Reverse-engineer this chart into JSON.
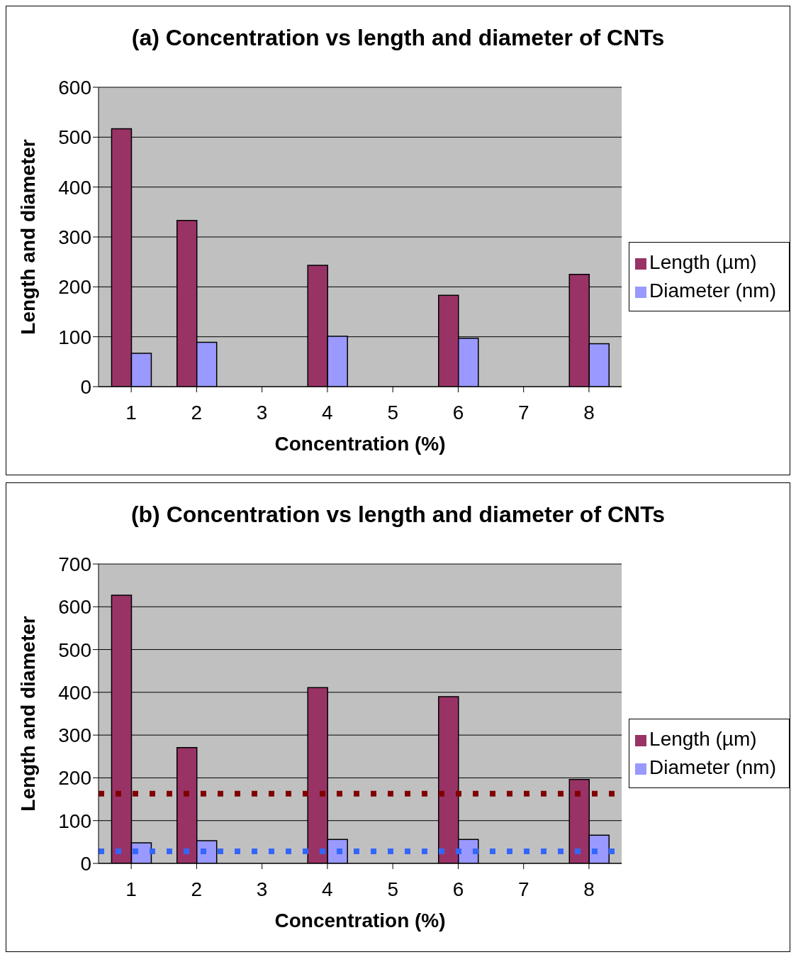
{
  "chart_data": [
    {
      "type": "bar",
      "title": "(a) Concentration vs length and diameter of CNTs",
      "xlabel": "Concentration (%)",
      "ylabel": "Length and diameter",
      "categories": [
        "1",
        "2",
        "3",
        "4",
        "5",
        "6",
        "7",
        "8"
      ],
      "series": [
        {
          "name": "Length (µm)",
          "color": "#993366",
          "values": [
            517,
            333,
            null,
            243,
            null,
            183,
            null,
            225
          ]
        },
        {
          "name": "Diameter (nm)",
          "color": "#9999ff",
          "values": [
            67,
            89,
            null,
            101,
            null,
            97,
            null,
            86
          ]
        }
      ],
      "ylim": [
        0,
        600
      ],
      "yticks": [
        0,
        100,
        200,
        300,
        400,
        500,
        600
      ],
      "grid": "y",
      "legend": "right"
    },
    {
      "type": "bar",
      "title": "(b) Concentration vs length and diameter of CNTs",
      "xlabel": "Concentration (%)",
      "ylabel": "Length and diameter",
      "categories": [
        "1",
        "2",
        "3",
        "4",
        "5",
        "6",
        "7",
        "8"
      ],
      "series": [
        {
          "name": "Length (µm)",
          "color": "#993366",
          "values": [
            627,
            271,
            null,
            411,
            null,
            390,
            null,
            196
          ]
        },
        {
          "name": "Diameter (nm)",
          "color": "#9999ff",
          "values": [
            48,
            53,
            null,
            56,
            null,
            56,
            null,
            66
          ]
        }
      ],
      "ylim": [
        0,
        700
      ],
      "yticks": [
        0,
        100,
        200,
        300,
        400,
        500,
        600,
        700
      ],
      "grid": "y",
      "legend": "right",
      "ref_lines": [
        {
          "axis": "y",
          "value": 163,
          "color": "#800000",
          "line_style": "dotted"
        },
        {
          "axis": "y",
          "value": 28,
          "color": "#3366ff",
          "line_style": "dotted"
        }
      ]
    }
  ]
}
